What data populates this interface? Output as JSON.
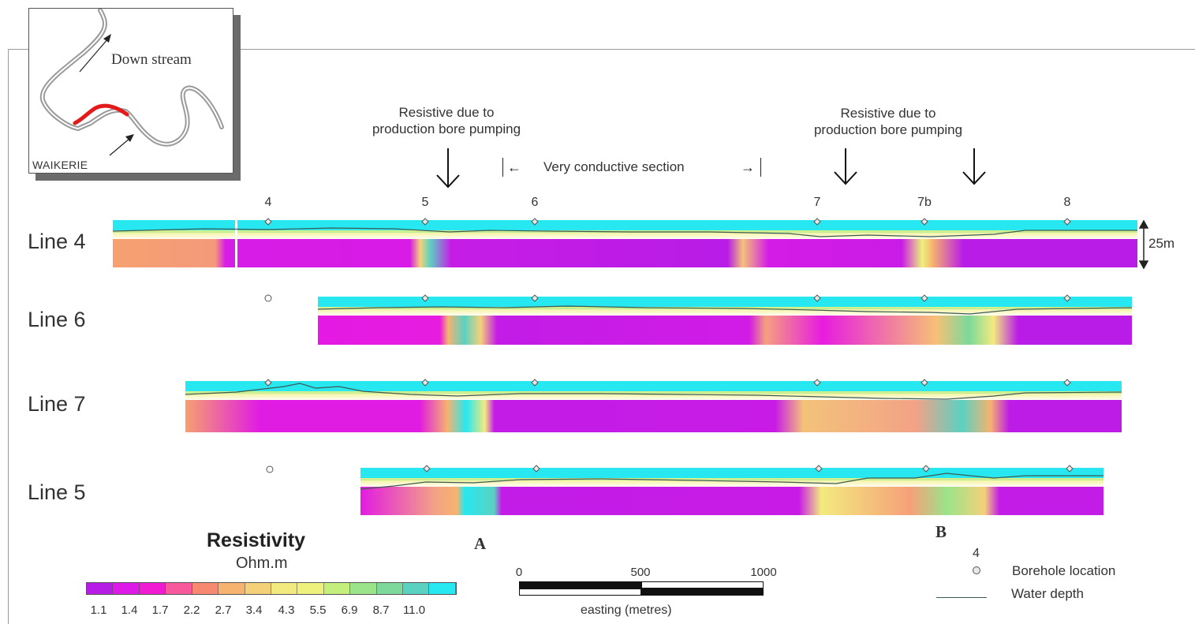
{
  "colors": {
    "scale": [
      "#b61ce6",
      "#dd1ae8",
      "#f21bd4",
      "#f75a9c",
      "#f6896f",
      "#f6b36f",
      "#f4d179",
      "#f3ea7f",
      "#eef17c",
      "#c4ef7d",
      "#9be48a",
      "#7cd99b",
      "#5bd1c2",
      "#27e8f0"
    ],
    "highlight_reach": "#e31a1a",
    "water_line": "#3d5a54"
  },
  "inset": {
    "downstream_label": "Down stream",
    "town_label": "WAIKERIE"
  },
  "annotations": {
    "resistive_left": "Resistive due to\nproduction bore pumping",
    "resistive_right": "Resistive due to\nproduction bore pumping",
    "conductive_section": "Very conductive section"
  },
  "boreholes": [
    "4",
    "5",
    "6",
    "7",
    "7b",
    "8"
  ],
  "lines": [
    {
      "label": "Line 4"
    },
    {
      "label": "Line 6"
    },
    {
      "label": "Line 7"
    },
    {
      "label": "Line 5"
    }
  ],
  "depth_scale_label": "25m",
  "legend": {
    "title": "Resistivity",
    "unit": "Ohm.m",
    "ticks": [
      "1.1",
      "1.4",
      "1.7",
      "2.2",
      "2.7",
      "3.4",
      "4.3",
      "5.5",
      "6.9",
      "8.7",
      "11.0"
    ]
  },
  "scale_bar": {
    "ticks": [
      "0",
      "500",
      "1000"
    ],
    "label": "easting (metres)"
  },
  "section_markers": [
    "A",
    "B"
  ],
  "key": {
    "borehole_number": "4",
    "borehole_label": "Borehole location",
    "water_label": "Water depth"
  }
}
